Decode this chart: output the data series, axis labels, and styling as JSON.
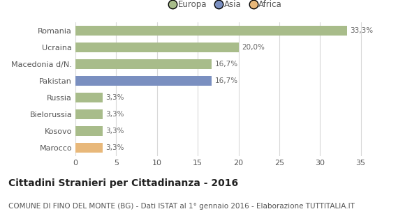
{
  "categories": [
    "Marocco",
    "Kosovo",
    "Bielorussia",
    "Russia",
    "Pakistan",
    "Macedonia d/N.",
    "Ucraina",
    "Romania"
  ],
  "values": [
    3.3,
    3.3,
    3.3,
    3.3,
    16.7,
    16.7,
    20.0,
    33.3
  ],
  "bar_colors": [
    "#e8b87a",
    "#a8bc8a",
    "#a8bc8a",
    "#a8bc8a",
    "#7a8fc0",
    "#a8bc8a",
    "#a8bc8a",
    "#a8bc8a"
  ],
  "labels": [
    "3,3%",
    "3,3%",
    "3,3%",
    "3,3%",
    "16,7%",
    "16,7%",
    "20,0%",
    "33,3%"
  ],
  "legend_labels": [
    "Europa",
    "Asia",
    "Africa"
  ],
  "legend_colors": [
    "#a8bc8a",
    "#7a8fc0",
    "#e8b87a"
  ],
  "title": "Cittadini Stranieri per Cittadinanza - 2016",
  "subtitle": "COMUNE DI FINO DEL MONTE (BG) - Dati ISTAT al 1° gennaio 2016 - Elaborazione TUTTITALIA.IT",
  "xlim": [
    0,
    37
  ],
  "xticks": [
    0,
    5,
    10,
    15,
    20,
    25,
    30,
    35
  ],
  "background_color": "#ffffff",
  "grid_color": "#d8d8d8",
  "bar_height": 0.55,
  "title_fontsize": 10,
  "subtitle_fontsize": 7.5,
  "label_fontsize": 7.5,
  "tick_fontsize": 8,
  "legend_fontsize": 8.5
}
